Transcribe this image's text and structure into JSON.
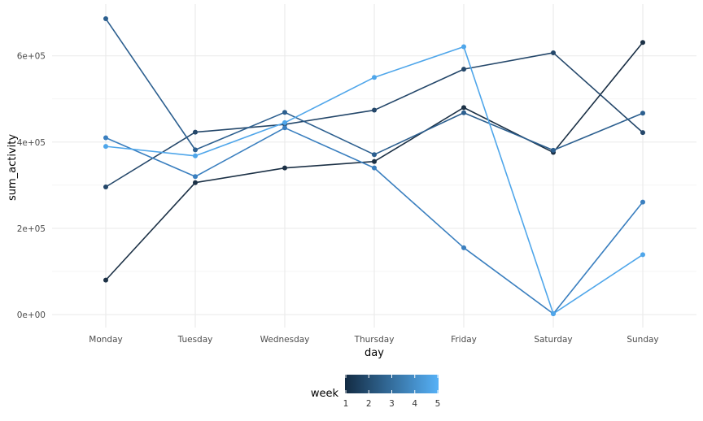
{
  "chart_data": {
    "type": "line",
    "title": "",
    "xlabel": "day",
    "ylabel": "sum_activity",
    "categories": [
      "Monday",
      "Tuesday",
      "Wednesday",
      "Thursday",
      "Friday",
      "Saturday",
      "Sunday"
    ],
    "ylim": [
      -30000,
      720000
    ],
    "yticks": [
      0,
      200000,
      400000,
      600000
    ],
    "ytick_labels": [
      "0e+00",
      "2e+05",
      "4e+05",
      "6e+05"
    ],
    "grid": true,
    "legend": {
      "title": "week",
      "placement": "bottom",
      "type": "continuous",
      "range": [
        1,
        5
      ],
      "ticks": [
        "1",
        "2",
        "3",
        "4",
        "5"
      ],
      "color_low": "#132B43",
      "color_high": "#56B1F7"
    },
    "series": [
      {
        "week": 1,
        "color": "#1c3146",
        "values": [
          80000,
          306000,
          340000,
          355000,
          480000,
          376000,
          631000
        ]
      },
      {
        "week": 2,
        "color": "#24476a",
        "values": [
          296000,
          423000,
          441000,
          474000,
          569000,
          607000,
          422000
        ]
      },
      {
        "week": 3,
        "color": "#2c5f8f",
        "values": [
          686000,
          382000,
          469000,
          371000,
          468000,
          381000,
          467000
        ]
      },
      {
        "week": 4,
        "color": "#3a7fbf",
        "values": [
          410000,
          320000,
          433000,
          340000,
          155000,
          2000,
          261000
        ]
      },
      {
        "week": 5,
        "color": "#4fa6ea",
        "values": [
          390000,
          368000,
          445000,
          550000,
          621000,
          2000,
          139000
        ]
      }
    ]
  }
}
